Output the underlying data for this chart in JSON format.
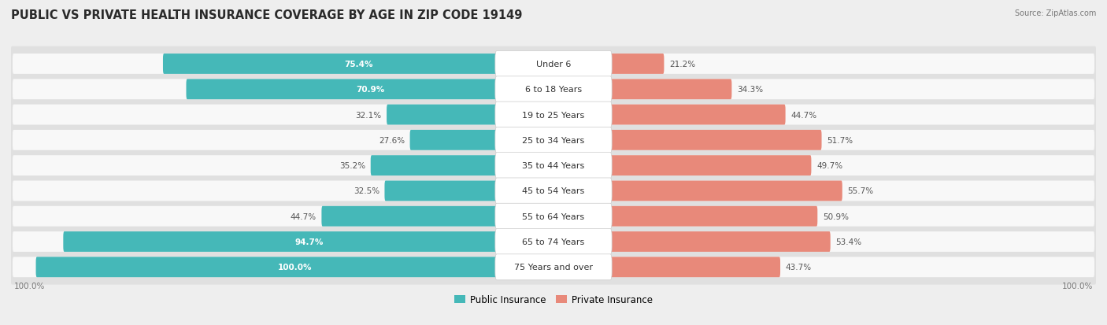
{
  "title": "PUBLIC VS PRIVATE HEALTH INSURANCE COVERAGE BY AGE IN ZIP CODE 19149",
  "source": "Source: ZipAtlas.com",
  "categories": [
    "Under 6",
    "6 to 18 Years",
    "19 to 25 Years",
    "25 to 34 Years",
    "35 to 44 Years",
    "45 to 54 Years",
    "55 to 64 Years",
    "65 to 74 Years",
    "75 Years and over"
  ],
  "public_values": [
    75.4,
    70.9,
    32.1,
    27.6,
    35.2,
    32.5,
    44.7,
    94.7,
    100.0
  ],
  "private_values": [
    21.2,
    34.3,
    44.7,
    51.7,
    49.7,
    55.7,
    50.9,
    53.4,
    43.7
  ],
  "public_color": "#45B8B8",
  "private_color": "#E8897A",
  "background_color": "#eeeeee",
  "row_bg_color": "#e0e0e0",
  "bar_bg_color": "#f8f8f8",
  "title_fontsize": 10.5,
  "label_fontsize": 8.0,
  "value_fontsize": 7.5,
  "figsize": [
    14.06,
    4.14
  ],
  "dpi": 100,
  "max_val": 100.0,
  "legend_labels": [
    "Public Insurance",
    "Private Insurance"
  ],
  "bottom_labels": [
    "100.0%",
    "100.0%"
  ]
}
